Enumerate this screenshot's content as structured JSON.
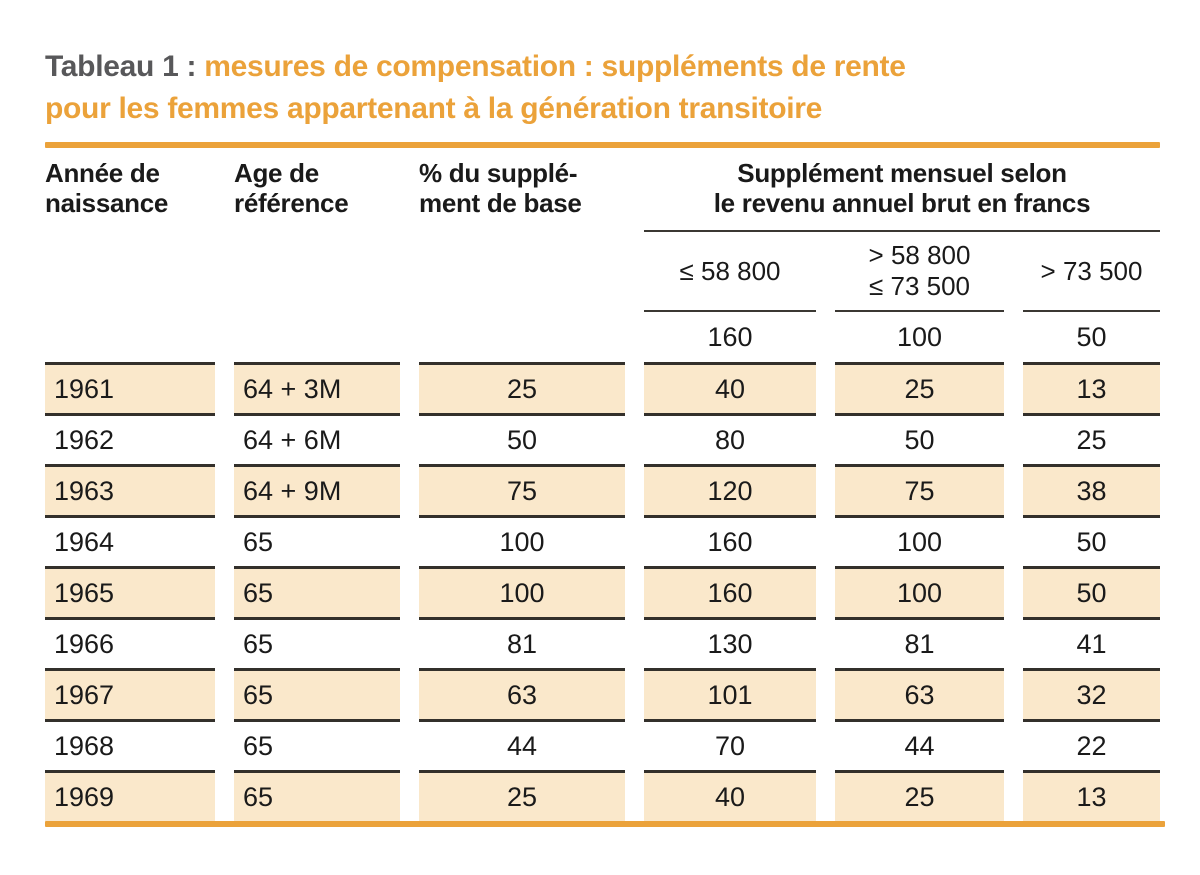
{
  "title": {
    "prefix": "Tableau 1 : ",
    "line1_orange": "mesures de compensation : suppléments de rente",
    "line2_orange": "pour les femmes appartenant à la génération transitoire"
  },
  "table": {
    "col_headers": {
      "birth_year": "Année de\nnaissance",
      "reference_age": "Age de\nréférence",
      "base_supplement_pct": "% du supplé-\nment de base",
      "monthly_supplement": "Supplément mensuel selon\nle revenu annuel brut en francs"
    },
    "income_brackets": [
      "≤ 58 800",
      "> 58 800\n≤ 73 500",
      "> 73 500"
    ],
    "max_row": [
      "160",
      "100",
      "50"
    ],
    "rows": [
      {
        "year": "1961",
        "age": "64 + 3M",
        "pct": "25",
        "v1": "40",
        "v2": "25",
        "v3": "13"
      },
      {
        "year": "1962",
        "age": "64 + 6M",
        "pct": "50",
        "v1": "80",
        "v2": "50",
        "v3": "25"
      },
      {
        "year": "1963",
        "age": "64 + 9M",
        "pct": "75",
        "v1": "120",
        "v2": "75",
        "v3": "38"
      },
      {
        "year": "1964",
        "age": "65",
        "pct": "100",
        "v1": "160",
        "v2": "100",
        "v3": "50"
      },
      {
        "year": "1965",
        "age": "65",
        "pct": "100",
        "v1": "160",
        "v2": "100",
        "v3": "50"
      },
      {
        "year": "1966",
        "age": "65",
        "pct": "81",
        "v1": "130",
        "v2": "81",
        "v3": "41"
      },
      {
        "year": "1967",
        "age": "65",
        "pct": "63",
        "v1": "101",
        "v2": "63",
        "v3": "32"
      },
      {
        "year": "1968",
        "age": "65",
        "pct": "44",
        "v1": "70",
        "v2": "44",
        "v3": "22"
      },
      {
        "year": "1969",
        "age": "65",
        "pct": "25",
        "v1": "40",
        "v2": "25",
        "v3": "13"
      }
    ]
  },
  "colors": {
    "accent_orange": "#EBA23A",
    "title_gray": "#58585A",
    "row_shade": "#FAE8CB",
    "line_dark": "#33302B"
  }
}
